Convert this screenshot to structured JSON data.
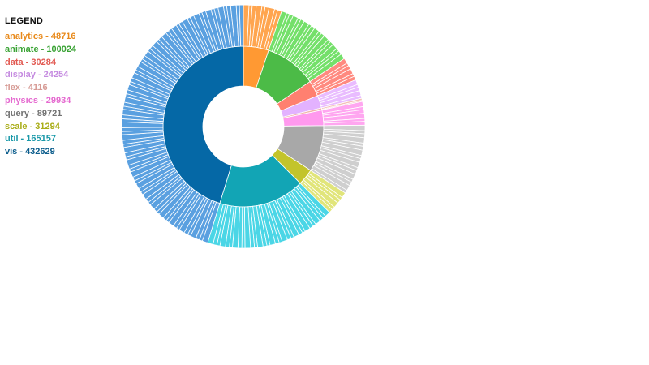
{
  "legend": {
    "title": "LEGEND",
    "items": [
      {
        "label": "analytics - 48716",
        "color": "#e8891a"
      },
      {
        "label": "animate - 100024",
        "color": "#3aa335"
      },
      {
        "label": "data - 30284",
        "color": "#e25a52"
      },
      {
        "label": "display - 24254",
        "color": "#c58be0"
      },
      {
        "label": "flex - 4116",
        "color": "#d69a94"
      },
      {
        "label": "physics - 29934",
        "color": "#e56ad0"
      },
      {
        "label": "query - 89721",
        "color": "#737373"
      },
      {
        "label": "scale - 31294",
        "color": "#a9ad17"
      },
      {
        "label": "util - 165157",
        "color": "#1a99a9"
      },
      {
        "label": "vis - 432629",
        "color": "#0c5d8c"
      }
    ]
  },
  "chart_data": {
    "type": "sunburst",
    "title": "",
    "series": [
      {
        "name": "analytics",
        "value": 48716,
        "inner_color": "#ff9933",
        "outer_color": "#ffa54f"
      },
      {
        "name": "animate",
        "value": 100024,
        "inner_color": "#4cbb47",
        "outer_color": "#74e06a"
      },
      {
        "name": "data",
        "value": 30284,
        "inner_color": "#ff8070",
        "outer_color": "#ff8a80"
      },
      {
        "name": "display",
        "value": 24254,
        "inner_color": "#e3b2ff",
        "outer_color": "#e9bcff"
      },
      {
        "name": "flex",
        "value": 4116,
        "inner_color": "#f0b3ab",
        "outer_color": "#f3bfb8"
      },
      {
        "name": "physics",
        "value": 29934,
        "inner_color": "#ff99ee",
        "outer_color": "#ffa6f0"
      },
      {
        "name": "query",
        "value": 89721,
        "inner_color": "#a8a8a8",
        "outer_color": "#cfcfcf"
      },
      {
        "name": "scale",
        "value": 31294,
        "inner_color": "#c3c42b",
        "outer_color": "#e1e57a"
      },
      {
        "name": "util",
        "value": 165157,
        "inner_color": "#12a5b5",
        "outer_color": "#4bd6e6"
      },
      {
        "name": "vis",
        "value": 432629,
        "inner_color": "#0568a6",
        "outer_color": "#5aa0e0"
      }
    ]
  }
}
